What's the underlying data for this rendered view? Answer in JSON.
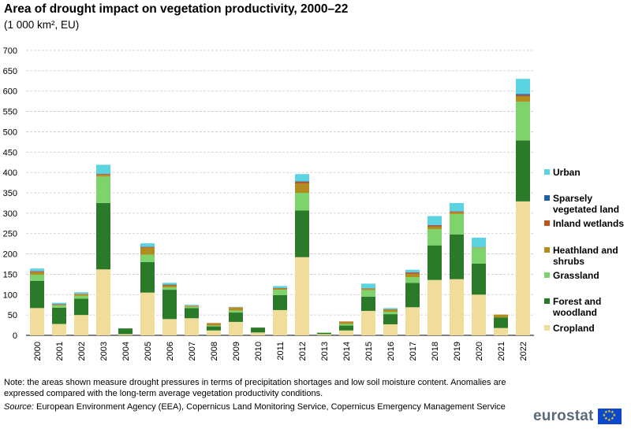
{
  "title": "Area of drought impact on vegetation productivity, 2000–22",
  "subtitle": "(1 000 km², EU)",
  "note": "Note: the areas shown measure drought pressures in terms of precipitation shortages and low soil moisture content. Anomalies are expressed compared with the long-term average vegetation productivity conditions.",
  "source_label": "Source:",
  "source_text": " European Environment Agency (EEA), Copernicus Land Monitoring Service, Copernicus Emergency Management Service",
  "logo_text": "eurostat",
  "chart_data": {
    "type": "bar",
    "stacked": true,
    "title": "Area of drought impact on vegetation productivity, 2000–22",
    "ylabel": "1 000 km²",
    "ylim": [
      0,
      700
    ],
    "yticks": [
      0,
      50,
      100,
      150,
      200,
      250,
      300,
      350,
      400,
      450,
      500,
      550,
      600,
      650,
      700
    ],
    "grid": true,
    "legend_position": "right",
    "categories": [
      "2000",
      "2001",
      "2002",
      "2003",
      "2004",
      "2005",
      "2006",
      "2007",
      "2008",
      "2009",
      "2010",
      "2011",
      "2012",
      "2013",
      "2014",
      "2015",
      "2016",
      "2017",
      "2018",
      "2019",
      "2020",
      "2021",
      "2022"
    ],
    "series": [
      {
        "name": "Cropland",
        "color": "#f0dc9b",
        "values": [
          67,
          28,
          50,
          162,
          3,
          105,
          40,
          42,
          12,
          33,
          7,
          62,
          192,
          3,
          12,
          60,
          27,
          69,
          136,
          138,
          100,
          18,
          329
        ]
      },
      {
        "name": "Forest and woodland",
        "color": "#2a7a2a",
        "values": [
          67,
          40,
          40,
          163,
          14,
          75,
          72,
          25,
          10,
          23,
          12,
          37,
          115,
          3,
          12,
          35,
          25,
          60,
          85,
          110,
          76,
          26,
          150
        ]
      },
      {
        "name": "Grassland",
        "color": "#7ed36c",
        "values": [
          15,
          5,
          7,
          65,
          0,
          18,
          6,
          3,
          2,
          5,
          0,
          13,
          43,
          1,
          4,
          16,
          6,
          14,
          40,
          50,
          38,
          0,
          95
        ]
      },
      {
        "name": "Heathland and shrubs",
        "color": "#b08d1e",
        "values": [
          6,
          2,
          4,
          4,
          0,
          17,
          4,
          2,
          5,
          7,
          0,
          3,
          23,
          0,
          5,
          3,
          5,
          8,
          6,
          4,
          2,
          7,
          13
        ]
      },
      {
        "name": "Inland wetlands",
        "color": "#c0521e",
        "values": [
          2,
          1,
          1,
          2,
          0,
          2,
          2,
          1,
          1,
          1,
          0,
          1,
          4,
          0,
          1,
          1,
          1,
          3,
          3,
          2,
          0,
          0,
          3
        ]
      },
      {
        "name": "Sparsely vegetated land",
        "color": "#1f5fa8",
        "values": [
          1,
          1,
          0,
          1,
          0,
          1,
          1,
          0,
          0,
          0,
          0,
          0,
          1,
          0,
          0,
          0,
          0,
          1,
          1,
          1,
          0,
          0,
          3
        ]
      },
      {
        "name": "Urban",
        "color": "#5bd3e0",
        "values": [
          6,
          3,
          4,
          22,
          0,
          8,
          4,
          2,
          0,
          1,
          0,
          5,
          18,
          0,
          0,
          12,
          3,
          6,
          22,
          20,
          24,
          0,
          37
        ]
      }
    ],
    "legend_order": [
      "Urban",
      "Sparsely vegetated land",
      "Inland wetlands",
      "Heathland and shrubs",
      "Grassland",
      "Forest and woodland",
      "Cropland"
    ]
  }
}
